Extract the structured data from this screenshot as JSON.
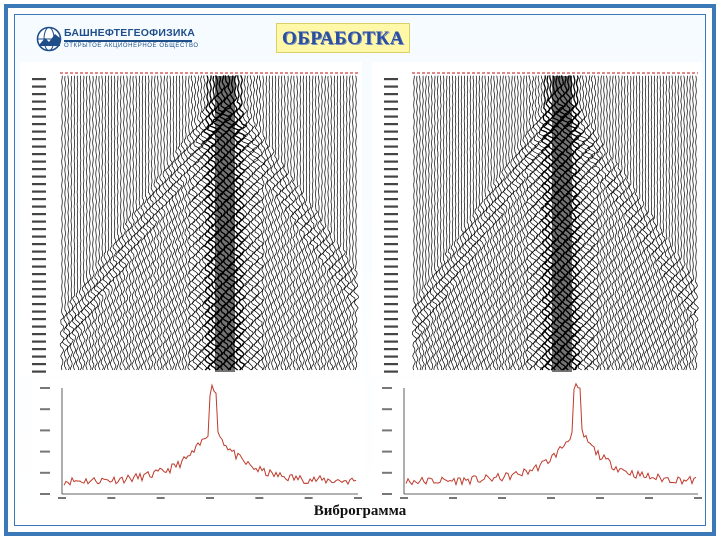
{
  "logo": {
    "name": "БАШНЕФТЕГЕОФИЗИКА",
    "subtitle": "ОТКРЫТОЕ АКЦИОНЕРНОЕ ОБЩЕСТВО"
  },
  "slide": {
    "title": "ОБРАБОТКА",
    "caption": "Виброграмма"
  },
  "colors": {
    "frame": "#3a78b8",
    "title_bg": "#fff8a8",
    "title_text": "#2b4fa0",
    "spectrum_line": "#c0392b"
  },
  "figures": [
    {
      "id": "seismogram-left",
      "type": "seismic-traces"
    },
    {
      "id": "seismogram-right",
      "type": "seismic-traces"
    },
    {
      "id": "spectrum-left",
      "type": "line"
    },
    {
      "id": "spectrum-right",
      "type": "line"
    }
  ]
}
